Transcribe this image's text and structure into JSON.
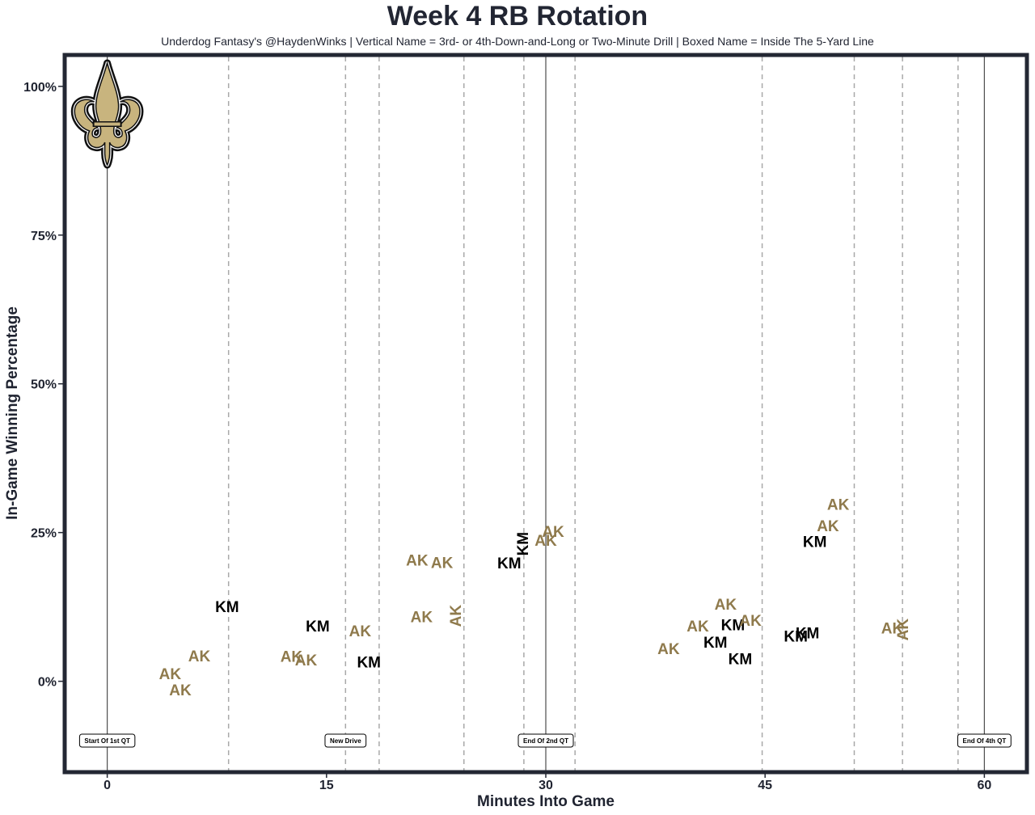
{
  "chart_data": {
    "type": "scatter",
    "title": "Week 4 RB Rotation",
    "subtitle": "Underdog Fantasy's @HaydenWinks | Vertical Name = 3rd- or 4th-Down-and-Long or Two-Minute Drill | Boxed Name = Inside The 5-Yard Line",
    "xlabel": "Minutes Into Game",
    "ylabel": "In-Game Winning Percentage",
    "xlim": [
      -2.8,
      62.8
    ],
    "ylim": [
      -15,
      105
    ],
    "x_ticks": [
      0,
      15,
      30,
      45,
      60
    ],
    "x_tick_labels": [
      "0",
      "15",
      "30",
      "45",
      "60"
    ],
    "y_ticks": [
      0,
      25,
      50,
      75,
      100
    ],
    "y_tick_labels": [
      "0%",
      "25%",
      "50%",
      "75%",
      "100%"
    ],
    "grid": false,
    "colors": {
      "AK": "#8f7a4c",
      "KM": "#000000",
      "frame": "#232733",
      "logo_gold": "#c8b47e"
    },
    "logo": "fleur-de-lis-icon",
    "solid_markers": [
      0,
      30,
      60
    ],
    "dashed_markers": [
      8.3,
      16.3,
      18.6,
      24.4,
      28.5,
      32.0,
      44.8,
      51.1,
      54.4,
      58.2
    ],
    "event_labels": [
      {
        "x": 0,
        "text": "Start Of 1st QT"
      },
      {
        "x": 16.3,
        "text": "New Drive"
      },
      {
        "x": 30,
        "text": "End Of 2nd QT"
      },
      {
        "x": 60,
        "text": "End Of 4th QT"
      }
    ],
    "points": [
      {
        "player": "AK",
        "x": 4.3,
        "y": 1.3,
        "vertical": false
      },
      {
        "player": "AK",
        "x": 5.0,
        "y": -1.4,
        "vertical": false
      },
      {
        "player": "AK",
        "x": 6.3,
        "y": 4.3,
        "vertical": false
      },
      {
        "player": "KM",
        "x": 8.2,
        "y": 12.6,
        "vertical": false
      },
      {
        "player": "AK",
        "x": 12.6,
        "y": 4.2,
        "vertical": false
      },
      {
        "player": "AK",
        "x": 13.6,
        "y": 3.6,
        "vertical": false
      },
      {
        "player": "KM",
        "x": 14.4,
        "y": 9.3,
        "vertical": false
      },
      {
        "player": "AK",
        "x": 17.3,
        "y": 8.5,
        "vertical": false
      },
      {
        "player": "KM",
        "x": 17.9,
        "y": 3.3,
        "vertical": false
      },
      {
        "player": "AK",
        "x": 21.5,
        "y": 10.9,
        "vertical": false
      },
      {
        "player": "AK",
        "x": 21.2,
        "y": 20.4,
        "vertical": false
      },
      {
        "player": "AK",
        "x": 22.9,
        "y": 20.0,
        "vertical": false
      },
      {
        "player": "AK",
        "x": 23.8,
        "y": 11.0,
        "vertical": true
      },
      {
        "player": "KM",
        "x": 27.5,
        "y": 19.9,
        "vertical": false
      },
      {
        "player": "KM",
        "x": 28.4,
        "y": 23.1,
        "vertical": true
      },
      {
        "player": "AK",
        "x": 30.0,
        "y": 23.7,
        "vertical": false
      },
      {
        "player": "AK",
        "x": 30.5,
        "y": 25.2,
        "vertical": false
      },
      {
        "player": "AK",
        "x": 38.4,
        "y": 5.5,
        "vertical": false
      },
      {
        "player": "AK",
        "x": 40.4,
        "y": 9.3,
        "vertical": false
      },
      {
        "player": "KM",
        "x": 41.6,
        "y": 6.6,
        "vertical": false
      },
      {
        "player": "AK",
        "x": 42.3,
        "y": 13.0,
        "vertical": false
      },
      {
        "player": "KM",
        "x": 42.8,
        "y": 9.5,
        "vertical": false
      },
      {
        "player": "KM",
        "x": 43.3,
        "y": 3.8,
        "vertical": false
      },
      {
        "player": "AK",
        "x": 44.0,
        "y": 10.3,
        "vertical": false
      },
      {
        "player": "KM",
        "x": 47.1,
        "y": 7.6,
        "vertical": false
      },
      {
        "player": "KM",
        "x": 47.9,
        "y": 8.2,
        "vertical": false
      },
      {
        "player": "KM",
        "x": 48.4,
        "y": 23.5,
        "vertical": false
      },
      {
        "player": "AK",
        "x": 49.3,
        "y": 26.2,
        "vertical": false
      },
      {
        "player": "AK",
        "x": 50.0,
        "y": 29.8,
        "vertical": false
      },
      {
        "player": "AK",
        "x": 53.7,
        "y": 9.0,
        "vertical": false
      },
      {
        "player": "AK",
        "x": 54.4,
        "y": 8.7,
        "vertical": true
      }
    ]
  }
}
